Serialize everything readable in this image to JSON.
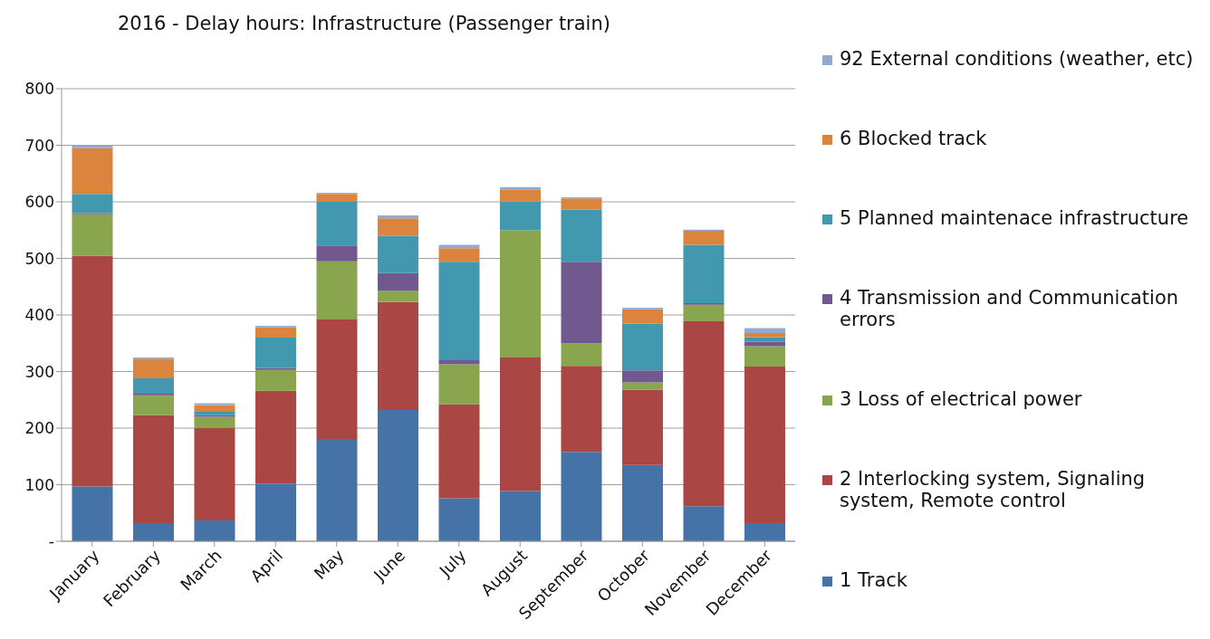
{
  "chart_data": {
    "type": "bar",
    "title": "2016 - Delay hours: Infrastructure (Passenger train)",
    "stacked": true,
    "grid": "y",
    "legend": "right",
    "categories": [
      "January",
      "February",
      "March",
      "April",
      "May",
      "June",
      "July",
      "August",
      "September",
      "October",
      "November",
      "December"
    ],
    "ylim": [
      0,
      800
    ],
    "yticks": [
      {
        "value": 0,
        "label": "-"
      },
      100,
      200,
      300,
      400,
      500,
      600,
      700,
      800
    ],
    "series": [
      {
        "name": "1 Track",
        "color": "#4572a7",
        "values": [
          97,
          32,
          37,
          102,
          181,
          232,
          76,
          89,
          158,
          135,
          62,
          32
        ]
      },
      {
        "name": "2 Interlocking system, Signaling system, Remote control",
        "color": "#aa4643",
        "values": [
          408,
          191,
          163,
          164,
          211,
          191,
          166,
          236,
          152,
          133,
          327,
          277
        ]
      },
      {
        "name": "3 Loss of electrical power",
        "color": "#89a54e",
        "values": [
          73,
          35,
          20,
          37,
          103,
          20,
          71,
          225,
          40,
          13,
          29,
          36
        ]
      },
      {
        "name": "4 Transmission and Communication errors",
        "color": "#71588f",
        "values": [
          2,
          3,
          3,
          3,
          28,
          31,
          7,
          0,
          144,
          21,
          3,
          8
        ]
      },
      {
        "name": "5 Planned maintenace infrastructure",
        "color": "#4198af",
        "values": [
          34,
          27,
          6,
          54,
          77,
          66,
          174,
          51,
          92,
          83,
          103,
          8
        ]
      },
      {
        "name": "6 Blocked track",
        "color": "#db843d",
        "values": [
          81,
          35,
          12,
          18,
          14,
          31,
          24,
          21,
          20,
          25,
          25,
          7
        ]
      },
      {
        "name": "92 External conditions (weather, etc)",
        "color": "#93a9cf",
        "values": [
          5,
          2,
          3,
          3,
          2,
          5,
          6,
          4,
          2,
          3,
          2,
          9
        ]
      }
    ]
  }
}
